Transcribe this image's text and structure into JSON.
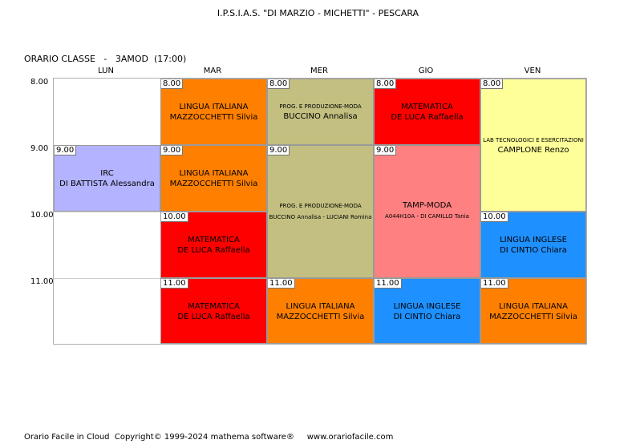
{
  "header": {
    "title": "I.P.S.I.A.S. \"DI MARZIO - MICHETTI\" - PESCARA"
  },
  "class_label": "ORARIO CLASSE   -   3AMOD  (17:00)",
  "days": [
    "LUN",
    "MAR",
    "MER",
    "GIO",
    "VEN"
  ],
  "hours": [
    "8.00",
    "9.00",
    "10.00",
    "11.00"
  ],
  "lessons": [
    {
      "time": "9.00",
      "line1": "IRC",
      "line2": "DI BATTISTA Alessandra",
      "color": "#b3b3ff"
    },
    {
      "time": "8.00",
      "line1": "LINGUA ITALIANA",
      "line2": "MAZZOCCHETTI Silvia",
      "color": "#ff8000"
    },
    {
      "time": "9.00",
      "line1": "LINGUA ITALIANA",
      "line2": "MAZZOCCHETTI Silvia",
      "color": "#ff8000"
    },
    {
      "time": "10.00",
      "line1": "MATEMATICA",
      "line2": "DE LUCA Raffaella",
      "color": "#ff0000"
    },
    {
      "time": "11.00",
      "line1": "MATEMATICA",
      "line2": "DE LUCA Raffaella",
      "color": "#ff0000"
    },
    {
      "time": "8.00",
      "line1": "PROG. E PRODUZIONE-MODA",
      "line2": "BUCCINO Annalisa",
      "color": "#c2bf80"
    },
    {
      "time": "9.00",
      "line1": "PROG. E PRODUZIONE-MODA",
      "line2": "BUCCINO Annalisa - LUCIANI Romina",
      "color": "#c2bf80"
    },
    {
      "time": "11.00",
      "line1": "LINGUA ITALIANA",
      "line2": "MAZZOCCHETTI Silvia",
      "color": "#ff8000"
    },
    {
      "time": "8.00",
      "line1": "MATEMATICA",
      "line2": "DE LUCA Raffaella",
      "color": "#ff0000"
    },
    {
      "time": "9.00",
      "line1": "TAMP-MODA",
      "line2": "A044H10A - DI CAMILLO Tania",
      "color": "#ff8080"
    },
    {
      "time": "11.00",
      "line1": "LINGUA INGLESE",
      "line2": "DI CINTIO Chiara",
      "color": "#1e90ff"
    },
    {
      "time": "8.00",
      "line1": "LAB TECNOLOGICI E ESERCITAZIONI",
      "line2": "CAMPLONE Renzo",
      "color": "#ffff99"
    },
    {
      "time": "10.00",
      "line1": "LINGUA INGLESE",
      "line2": "DI CINTIO Chiara",
      "color": "#1e90ff"
    },
    {
      "time": "11.00",
      "line1": "LINGUA ITALIANA",
      "line2": "MAZZOCCHETTI Silvia",
      "color": "#ff8000"
    }
  ],
  "footer": "Orario Facile in Cloud  Copyright© 1999-2024 mathema software®     www.orariofacile.com"
}
